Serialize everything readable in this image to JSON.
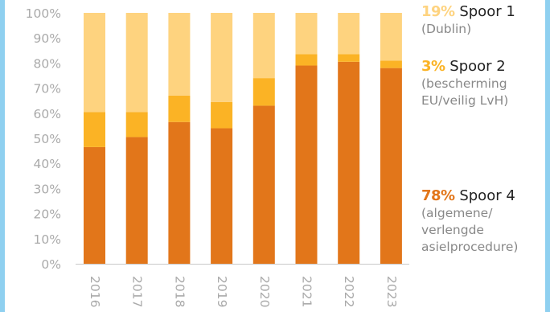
{
  "colors": {
    "frame": "#8fd0f0",
    "spoor1": "#fed37f",
    "spoor2": "#fbb325",
    "spoor4": "#e2761a",
    "axis_text": "#aaaaaa",
    "axis_line": "#c8c8c8"
  },
  "chart_data": {
    "type": "bar",
    "stacked": true,
    "categories": [
      "2016",
      "2017",
      "2018",
      "2019",
      "2020",
      "2021",
      "2022",
      "2023"
    ],
    "series": [
      {
        "name": "Spoor 4",
        "values": [
          46.5,
          50.5,
          56.5,
          54,
          63,
          79,
          80.5,
          78
        ]
      },
      {
        "name": "Spoor 2",
        "values": [
          14,
          10,
          10.5,
          10.5,
          11,
          4.5,
          3,
          3
        ]
      },
      {
        "name": "Spoor 1",
        "values": [
          39.5,
          39.5,
          33,
          35.5,
          26,
          16.5,
          16.5,
          19
        ]
      }
    ],
    "yticks": [
      "0%",
      "10%",
      "20%",
      "30%",
      "40%",
      "50%",
      "60%",
      "70%",
      "80%",
      "90%",
      "100%"
    ],
    "ylim": [
      0,
      100
    ],
    "legend_position": "right"
  },
  "legend": [
    {
      "pct": "19%",
      "name": "Spoor 1",
      "desc": [
        "(Dublin)"
      ]
    },
    {
      "pct": "3%",
      "name": "Spoor 2",
      "desc": [
        "(bescherming",
        "EU/veilig LvH)"
      ]
    },
    {
      "pct": "78%",
      "name": "Spoor 4",
      "desc": [
        "(algemene/",
        "verlengde",
        "asielprocedure)"
      ]
    }
  ]
}
